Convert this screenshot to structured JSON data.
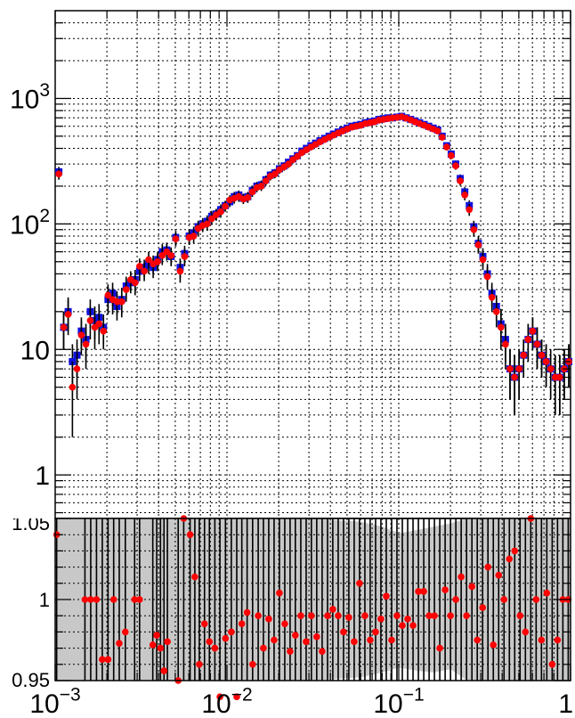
{
  "chart_data": {
    "type": "scatter",
    "x_scale": "log",
    "xlim": [
      0.001,
      1
    ],
    "x_ticks": [
      {
        "value": 0.001,
        "base": "10",
        "exp": "−3"
      },
      {
        "value": 0.01,
        "base": "10",
        "exp": "−2"
      },
      {
        "value": 0.1,
        "base": "10",
        "exp": "−1"
      },
      {
        "value": 1,
        "text": "1"
      }
    ],
    "top_panel": {
      "y_scale": "log",
      "ylim": [
        0.45,
        5000
      ],
      "grid": true,
      "y_ticks": [
        {
          "value": 1,
          "text": "1"
        },
        {
          "value": 10,
          "text": "10"
        },
        {
          "value": 100,
          "base": "10",
          "exp": "2"
        },
        {
          "value": 1000,
          "base": "10",
          "exp": "3"
        }
      ],
      "series": [
        {
          "color": "#1010dd",
          "marker": "square",
          "x": [
            0.00105,
            0.00112,
            0.00119,
            0.00126,
            0.00134,
            0.00142,
            0.00151,
            0.0016,
            0.0017,
            0.0018,
            0.00191,
            0.00203,
            0.00216,
            0.00229,
            0.00244,
            0.00259,
            0.00275,
            0.00292,
            0.0031,
            0.0033,
            0.0035,
            0.00372,
            0.00395,
            0.0042,
            0.00446,
            0.00473,
            0.00503,
            0.00534,
            0.00567,
            0.00603,
            0.0064,
            0.0068,
            0.00722,
            0.00767,
            0.00815,
            0.00866,
            0.0092,
            0.00977,
            0.01038,
            0.01103,
            0.01172,
            0.01245,
            0.01322,
            0.01405,
            0.01492,
            0.01585,
            0.01684,
            0.01789,
            0.01901,
            0.0202,
            0.0215,
            0.0228,
            0.0242,
            0.0257,
            0.0273,
            0.029,
            0.0308,
            0.0328,
            0.0348,
            0.037,
            0.0393,
            0.0418,
            0.0444,
            0.0472,
            0.0501,
            0.0533,
            0.0566,
            0.0601,
            0.0639,
            0.0679,
            0.0721,
            0.0766,
            0.0814,
            0.0865,
            0.0919,
            0.0977,
            0.1038,
            0.1103,
            0.1172,
            0.1245,
            0.1322,
            0.1405,
            0.1492,
            0.1585,
            0.1684,
            0.1789,
            0.1901,
            0.202,
            0.2146,
            0.228,
            0.2423,
            0.2574,
            0.2735,
            0.2906,
            0.3088,
            0.3281,
            0.3486,
            0.3704,
            0.3935,
            0.4181,
            0.4442,
            0.472,
            0.5015,
            0.5328,
            0.5661,
            0.6015,
            0.6391,
            0.679,
            0.7214,
            0.7665,
            0.8144,
            0.8653,
            0.9194,
            0.9768
          ],
          "y": [
            260,
            15,
            20,
            8,
            9,
            14,
            12,
            20,
            17,
            18,
            15,
            25,
            28,
            22,
            25,
            32,
            34,
            36,
            42,
            45,
            48,
            45,
            52,
            60,
            62,
            55,
            78,
            45,
            58,
            80,
            85,
            95,
            100,
            105,
            115,
            120,
            130,
            140,
            150,
            165,
            170,
            160,
            165,
            185,
            200,
            205,
            225,
            245,
            255,
            275,
            290,
            310,
            330,
            350,
            380,
            400,
            420,
            440,
            460,
            480,
            500,
            520,
            540,
            560,
            580,
            600,
            610,
            620,
            640,
            650,
            660,
            680,
            690,
            700,
            700,
            710,
            720,
            700,
            680,
            660,
            640,
            620,
            600,
            580,
            560,
            500,
            420,
            360,
            300,
            230,
            180,
            140,
            95,
            70,
            55,
            40,
            28,
            22,
            16,
            12,
            7,
            6,
            7,
            9,
            12,
            14,
            11,
            9,
            8,
            7,
            6,
            6,
            7,
            8
          ],
          "yerr": [
            25,
            5,
            6,
            3,
            3,
            4,
            4,
            5,
            5,
            5,
            4,
            6,
            6,
            5,
            6,
            6,
            6,
            7,
            7,
            7,
            8,
            8,
            8,
            9,
            9,
            9,
            10,
            8,
            9,
            10,
            10,
            11,
            11,
            12,
            12,
            12,
            13,
            13,
            14,
            15,
            15,
            14,
            15,
            16,
            16,
            17,
            18,
            18,
            19,
            20,
            20,
            21,
            22,
            22,
            23,
            24,
            24,
            25,
            25,
            26,
            26,
            27,
            27,
            28,
            28,
            29,
            29,
            30,
            30,
            30,
            30,
            31,
            31,
            31,
            31,
            31,
            32,
            31,
            31,
            30,
            30,
            29,
            29,
            28,
            28,
            26,
            24,
            22,
            20,
            18,
            16,
            14,
            11,
            10,
            9,
            8,
            6,
            5,
            5,
            4,
            3,
            3,
            3,
            3,
            4,
            4,
            4,
            3,
            3,
            3,
            3,
            3,
            3,
            3
          ]
        },
        {
          "color": "#ff0000",
          "marker": "circle",
          "x": [
            0.00105,
            0.00112,
            0.00119,
            0.00126,
            0.00134,
            0.00142,
            0.00151,
            0.0016,
            0.0017,
            0.0018,
            0.00191,
            0.00203,
            0.00216,
            0.00229,
            0.00244,
            0.00259,
            0.00275,
            0.00292,
            0.0031,
            0.0033,
            0.0035,
            0.00372,
            0.00395,
            0.0042,
            0.00446,
            0.00473,
            0.00503,
            0.00534,
            0.00567,
            0.00603,
            0.0064,
            0.0068,
            0.00722,
            0.00767,
            0.00815,
            0.00866,
            0.0092,
            0.00977,
            0.01038,
            0.01103,
            0.01172,
            0.01245,
            0.01322,
            0.01405,
            0.01492,
            0.01585,
            0.01684,
            0.01789,
            0.01901,
            0.0202,
            0.0215,
            0.0228,
            0.0242,
            0.0257,
            0.0273,
            0.029,
            0.0308,
            0.0328,
            0.0348,
            0.037,
            0.0393,
            0.0418,
            0.0444,
            0.0472,
            0.0501,
            0.0533,
            0.0566,
            0.0601,
            0.0639,
            0.0679,
            0.0721,
            0.0766,
            0.0814,
            0.0865,
            0.0919,
            0.0977,
            0.1038,
            0.1103,
            0.1172,
            0.1245,
            0.1322,
            0.1405,
            0.1492,
            0.1585,
            0.1684,
            0.1789,
            0.1901,
            0.202,
            0.2146,
            0.228,
            0.2423,
            0.2574,
            0.2735,
            0.2906,
            0.3088,
            0.3281,
            0.3486,
            0.3704,
            0.3935,
            0.4181,
            0.4442,
            0.472,
            0.5015,
            0.5328,
            0.5661,
            0.6015,
            0.6391,
            0.679,
            0.7214,
            0.7665,
            0.8144,
            0.8653,
            0.9194,
            0.9768
          ],
          "y": [
            250,
            15,
            19,
            5,
            7,
            13,
            11,
            17,
            15,
            16,
            14,
            27,
            25,
            24,
            24,
            30,
            36,
            34,
            46,
            42,
            52,
            48,
            50,
            56,
            60,
            56,
            76,
            42,
            55,
            78,
            80,
            92,
            97,
            100,
            110,
            118,
            125,
            138,
            155,
            160,
            165,
            158,
            162,
            180,
            195,
            200,
            220,
            240,
            250,
            270,
            285,
            300,
            325,
            345,
            370,
            390,
            410,
            430,
            450,
            470,
            490,
            510,
            530,
            550,
            570,
            590,
            600,
            610,
            630,
            640,
            650,
            670,
            680,
            690,
            700,
            705,
            715,
            695,
            675,
            650,
            630,
            610,
            590,
            570,
            550,
            490,
            410,
            350,
            290,
            220,
            170,
            130,
            90,
            68,
            52,
            38,
            26,
            20,
            15,
            11,
            7,
            6,
            7,
            9,
            12,
            14,
            11,
            9,
            8,
            7,
            6,
            6,
            7,
            8
          ],
          "yerr": [
            25,
            5,
            6,
            3,
            3,
            4,
            4,
            5,
            5,
            5,
            4,
            6,
            6,
            5,
            6,
            6,
            6,
            7,
            7,
            7,
            8,
            8,
            8,
            9,
            9,
            9,
            10,
            8,
            9,
            10,
            10,
            11,
            11,
            12,
            12,
            12,
            13,
            13,
            14,
            15,
            15,
            14,
            15,
            16,
            16,
            17,
            18,
            18,
            19,
            20,
            20,
            21,
            22,
            22,
            23,
            24,
            24,
            25,
            25,
            26,
            26,
            27,
            27,
            28,
            28,
            29,
            29,
            30,
            30,
            30,
            30,
            31,
            31,
            31,
            31,
            31,
            32,
            31,
            31,
            30,
            30,
            29,
            29,
            28,
            28,
            26,
            24,
            22,
            20,
            18,
            16,
            14,
            11,
            10,
            9,
            8,
            6,
            5,
            5,
            4,
            3,
            3,
            3,
            3,
            4,
            4,
            4,
            3,
            3,
            3,
            3,
            3,
            3,
            3
          ]
        }
      ]
    },
    "bottom_panel": {
      "ylim": [
        0.95,
        1.05
      ],
      "grid": true,
      "band_color": "#c8c8c8",
      "y_ticks": [
        {
          "value": 0.95,
          "text": "0.95"
        },
        {
          "value": 1,
          "text": "1"
        },
        {
          "value": 1.05,
          "text": "1.05"
        }
      ],
      "band": {
        "x": [
          0.001,
          0.01,
          0.03,
          0.06,
          0.08,
          0.1,
          0.13,
          0.16,
          0.2,
          0.25,
          0.3,
          0.4,
          0.6,
          1
        ],
        "low": [
          0.94,
          0.94,
          0.945,
          0.952,
          0.955,
          0.958,
          0.956,
          0.955,
          0.957,
          0.945,
          0.94,
          0.94,
          0.94,
          0.94
        ],
        "high": [
          1.06,
          1.06,
          1.055,
          1.048,
          1.045,
          1.041,
          1.043,
          1.045,
          1.047,
          1.055,
          1.06,
          1.06,
          1.06,
          1.06
        ]
      },
      "series": {
        "color": "#ff0000",
        "x": [
          0.00102,
          0.00149,
          0.00161,
          0.00174,
          0.00188,
          0.00203,
          0.00219,
          0.00236,
          0.00256,
          0.0029,
          0.0031,
          0.0037,
          0.0039,
          0.0041,
          0.0043,
          0.0045,
          0.0052,
          0.0056,
          0.0061,
          0.0065,
          0.0069,
          0.0074,
          0.0079,
          0.0085,
          0.0091,
          0.0098,
          0.0106,
          0.0114,
          0.0122,
          0.0131,
          0.0141,
          0.0152,
          0.0163,
          0.0175,
          0.0188,
          0.0202,
          0.0217,
          0.0233,
          0.025,
          0.0269,
          0.0289,
          0.031,
          0.0333,
          0.0358,
          0.0385,
          0.0413,
          0.0444,
          0.0477,
          0.0512,
          0.055,
          0.0591,
          0.0635,
          0.0682,
          0.0733,
          0.0787,
          0.0846,
          0.0909,
          0.0976,
          0.1049,
          0.1127,
          0.1211,
          0.1301,
          0.1398,
          0.1502,
          0.1613,
          0.1733,
          0.1862,
          0.2001,
          0.2149,
          0.2309,
          0.2481,
          0.2666,
          0.2864,
          0.3077,
          0.3306,
          0.3552,
          0.3816,
          0.4099,
          0.4404,
          0.4732,
          0.5083,
          0.5461,
          0.5867,
          0.6304,
          0.6772,
          0.7276,
          0.7817,
          0.8398,
          0.9023,
          0.9694
        ],
        "y": [
          1.04,
          1.0,
          1.0,
          1.0,
          0.963,
          0.963,
          1.0,
          0.973,
          0.98,
          1.0,
          1.0,
          0.972,
          0.978,
          0.97,
          0.956,
          0.974,
          0.95,
          1.05,
          1.04,
          1.014,
          0.96,
          0.985,
          0.974,
          0.97,
          0.94,
          0.976,
          0.98,
          0.94,
          0.985,
          0.992,
          0.96,
          0.99,
          0.97,
          0.988,
          0.975,
          1.004,
          0.985,
          0.968,
          0.978,
          0.99,
          0.974,
          0.99,
          0.977,
          0.968,
          0.99,
          0.994,
          0.99,
          0.98,
          0.989,
          0.974,
          1.01,
          0.99,
          0.975,
          0.98,
          0.988,
          1.002,
          0.975,
          0.99,
          0.984,
          0.988,
          0.984,
          1.005,
          1.005,
          0.99,
          0.99,
          0.97,
          1.006,
          0.99,
          1.0,
          1.014,
          0.99,
          1.008,
          0.975,
          0.995,
          1.02,
          0.972,
          1.015,
          1.0,
          1.025,
          1.03,
          0.99,
          0.98,
          1.05,
          1.0,
          0.975,
          1.004,
          0.96,
          0.975,
          1.0,
          1.0
        ]
      }
    }
  }
}
